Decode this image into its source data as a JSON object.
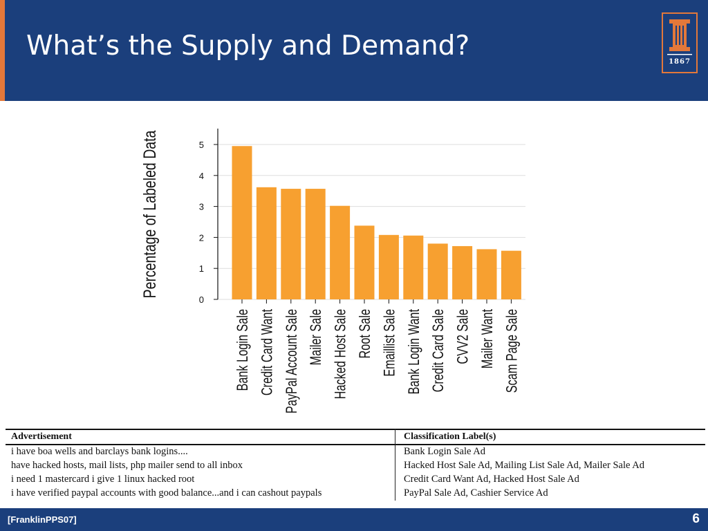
{
  "slide": {
    "title": "What’s the Supply and Demand?",
    "logo_year": "1867",
    "citation": "[FranklinPPS07]",
    "page_number": "6"
  },
  "colors": {
    "header_bg": "#1b3f7c",
    "accent": "#e3783a",
    "bar": "#f7a030"
  },
  "chart_data": {
    "type": "bar",
    "categories": [
      "Bank Login Sale",
      "Credit Card Want",
      "PayPal Account Sale",
      "Mailer Sale",
      "Hacked Host Sale",
      "Root Sale",
      "Emaillist Sale",
      "Bank Login Want",
      "Credit Card Sale",
      "CVV2 Sale",
      "Mailer Want",
      "Scam Page Sale"
    ],
    "values": [
      4.95,
      3.62,
      3.57,
      3.57,
      3.02,
      2.38,
      2.08,
      2.06,
      1.8,
      1.72,
      1.62,
      1.57
    ],
    "title": "",
    "xlabel": "",
    "ylabel": "Percentage of Labeled Data",
    "yticks": [
      0,
      1,
      2,
      3,
      4,
      5
    ],
    "ylim": [
      0,
      5.5
    ],
    "grid": true,
    "legend": "none"
  },
  "table": {
    "headers": [
      "Advertisement",
      "Classification Label(s)"
    ],
    "rows": [
      [
        "i have boa wells and barclays bank logins....",
        "Bank Login Sale Ad"
      ],
      [
        "have hacked hosts, mail lists, php mailer send to all inbox",
        "Hacked Host Sale Ad, Mailing List Sale Ad, Mailer Sale Ad"
      ],
      [
        "i need 1 mastercard i give 1 linux hacked root",
        "Credit Card Want Ad, Hacked Host Sale Ad"
      ],
      [
        "i have verified paypal accounts with good balance...and i can cashout paypals",
        "PayPal Sale Ad, Cashier Service Ad"
      ]
    ]
  }
}
